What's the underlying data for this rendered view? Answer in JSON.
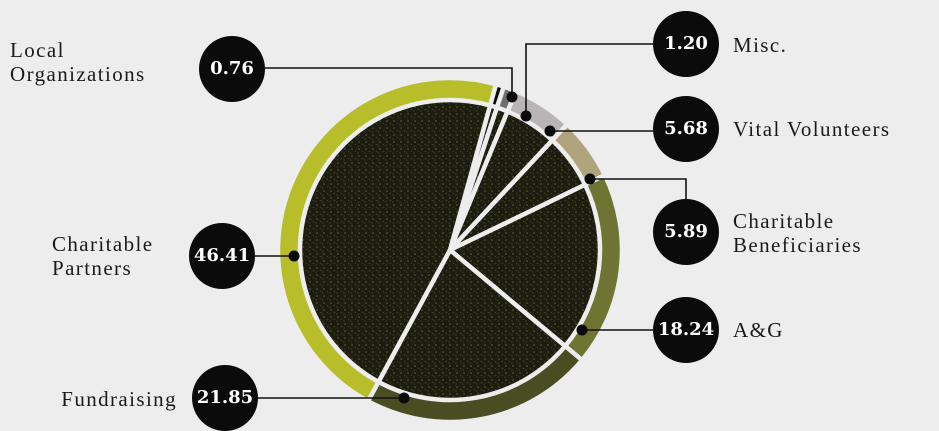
{
  "chart_data": {
    "type": "pie",
    "title": "",
    "slices": [
      {
        "label": "Local Organizations",
        "value": 0.76,
        "color": "#0a0a0a"
      },
      {
        "label": "Misc.",
        "value": 1.2,
        "color": "#6e6e6e"
      },
      {
        "label": "Vital Volunteers",
        "value": 5.68,
        "color": "#b9b4b6"
      },
      {
        "label": "Charitable Beneficiaries",
        "value": 5.89,
        "color": "#b0a47c"
      },
      {
        "label": "A&G",
        "value": 18.24,
        "color": "#6e7533"
      },
      {
        "label": "Fundraising",
        "value": 21.85,
        "color": "#4a4c22"
      },
      {
        "label": "Charitable Partners",
        "value": 46.41,
        "color": "#b7be2a"
      }
    ],
    "labels": {
      "local_organizations": {
        "line1": "Local",
        "line2": "Organizations",
        "value": "0.76"
      },
      "misc": {
        "line1": "Misc.",
        "value": "1.20"
      },
      "vital_volunteers": {
        "line1": "Vital Volunteers",
        "value": "5.68"
      },
      "charitable_beneficiaries": {
        "line1": "Charitable",
        "line2": "Beneficiaries",
        "value": "5.89"
      },
      "ag": {
        "line1": "A&G",
        "value": "18.24"
      },
      "fundraising": {
        "line1": "Fundraising",
        "value": "21.85"
      },
      "charitable_partners": {
        "line1": "Charitable",
        "line2": "Partners",
        "value": "46.41"
      }
    }
  }
}
